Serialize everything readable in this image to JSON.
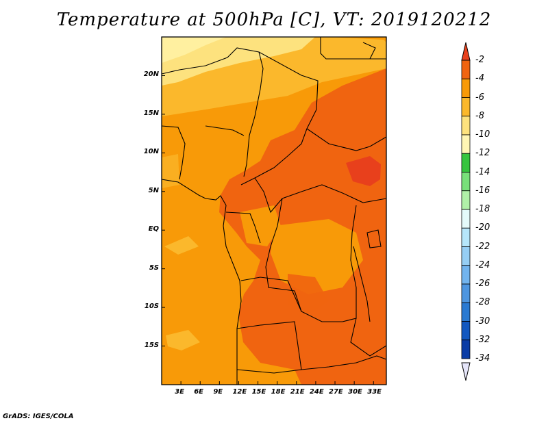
{
  "title": "Temperature at 500hPa [C], VT: 2019120212",
  "footer": "GrADS: IGES/COLA",
  "map": {
    "lon_range": [
      0,
      35
    ],
    "lat_range": [
      -20,
      25
    ],
    "lat_ticks": [
      {
        "value": 20,
        "label": "20N"
      },
      {
        "value": 15,
        "label": "15N"
      },
      {
        "value": 10,
        "label": "10N"
      },
      {
        "value": 5,
        "label": "5N"
      },
      {
        "value": 0,
        "label": "EQ"
      },
      {
        "value": -5,
        "label": "5S"
      },
      {
        "value": -10,
        "label": "10S"
      },
      {
        "value": -15,
        "label": "15S"
      }
    ],
    "lon_ticks": [
      {
        "value": 3,
        "label": "3E"
      },
      {
        "value": 6,
        "label": "6E"
      },
      {
        "value": 9,
        "label": "9E"
      },
      {
        "value": 12,
        "label": "12E"
      },
      {
        "value": 15,
        "label": "15E"
      },
      {
        "value": 18,
        "label": "18E"
      },
      {
        "value": 21,
        "label": "21E"
      },
      {
        "value": 24,
        "label": "24E"
      },
      {
        "value": 27,
        "label": "27E"
      },
      {
        "value": 30,
        "label": "30E"
      },
      {
        "value": 33,
        "label": "33E"
      }
    ]
  },
  "colorbar": {
    "labels": [
      "-2",
      "-4",
      "-6",
      "-8",
      "-10",
      "-12",
      "-14",
      "-16",
      "-18",
      "-20",
      "-22",
      "-24",
      "-26",
      "-28",
      "-30",
      "-32",
      "-34"
    ],
    "colors": [
      "#e8401c",
      "#f06410",
      "#f89a08",
      "#fbb82c",
      "#fde27e",
      "#fff6b4",
      "#36c53e",
      "#78e07a",
      "#b0f0a8",
      "#e4fafa",
      "#b6e6fa",
      "#96cef4",
      "#72b4ee",
      "#4e96e0",
      "#2a7ad2",
      "#1258c0",
      "#0a3ca6",
      "#06145e"
    ],
    "upper_arrow_color": "#e8401c",
    "lower_arrow_color": "#e6e6fa"
  },
  "fields": {
    "palette": {
      "c2": "#e8401c",
      "c4": "#f06410",
      "c6": "#f89a08",
      "c8": "#fbb82c",
      "c10": "#fde27e"
    }
  }
}
